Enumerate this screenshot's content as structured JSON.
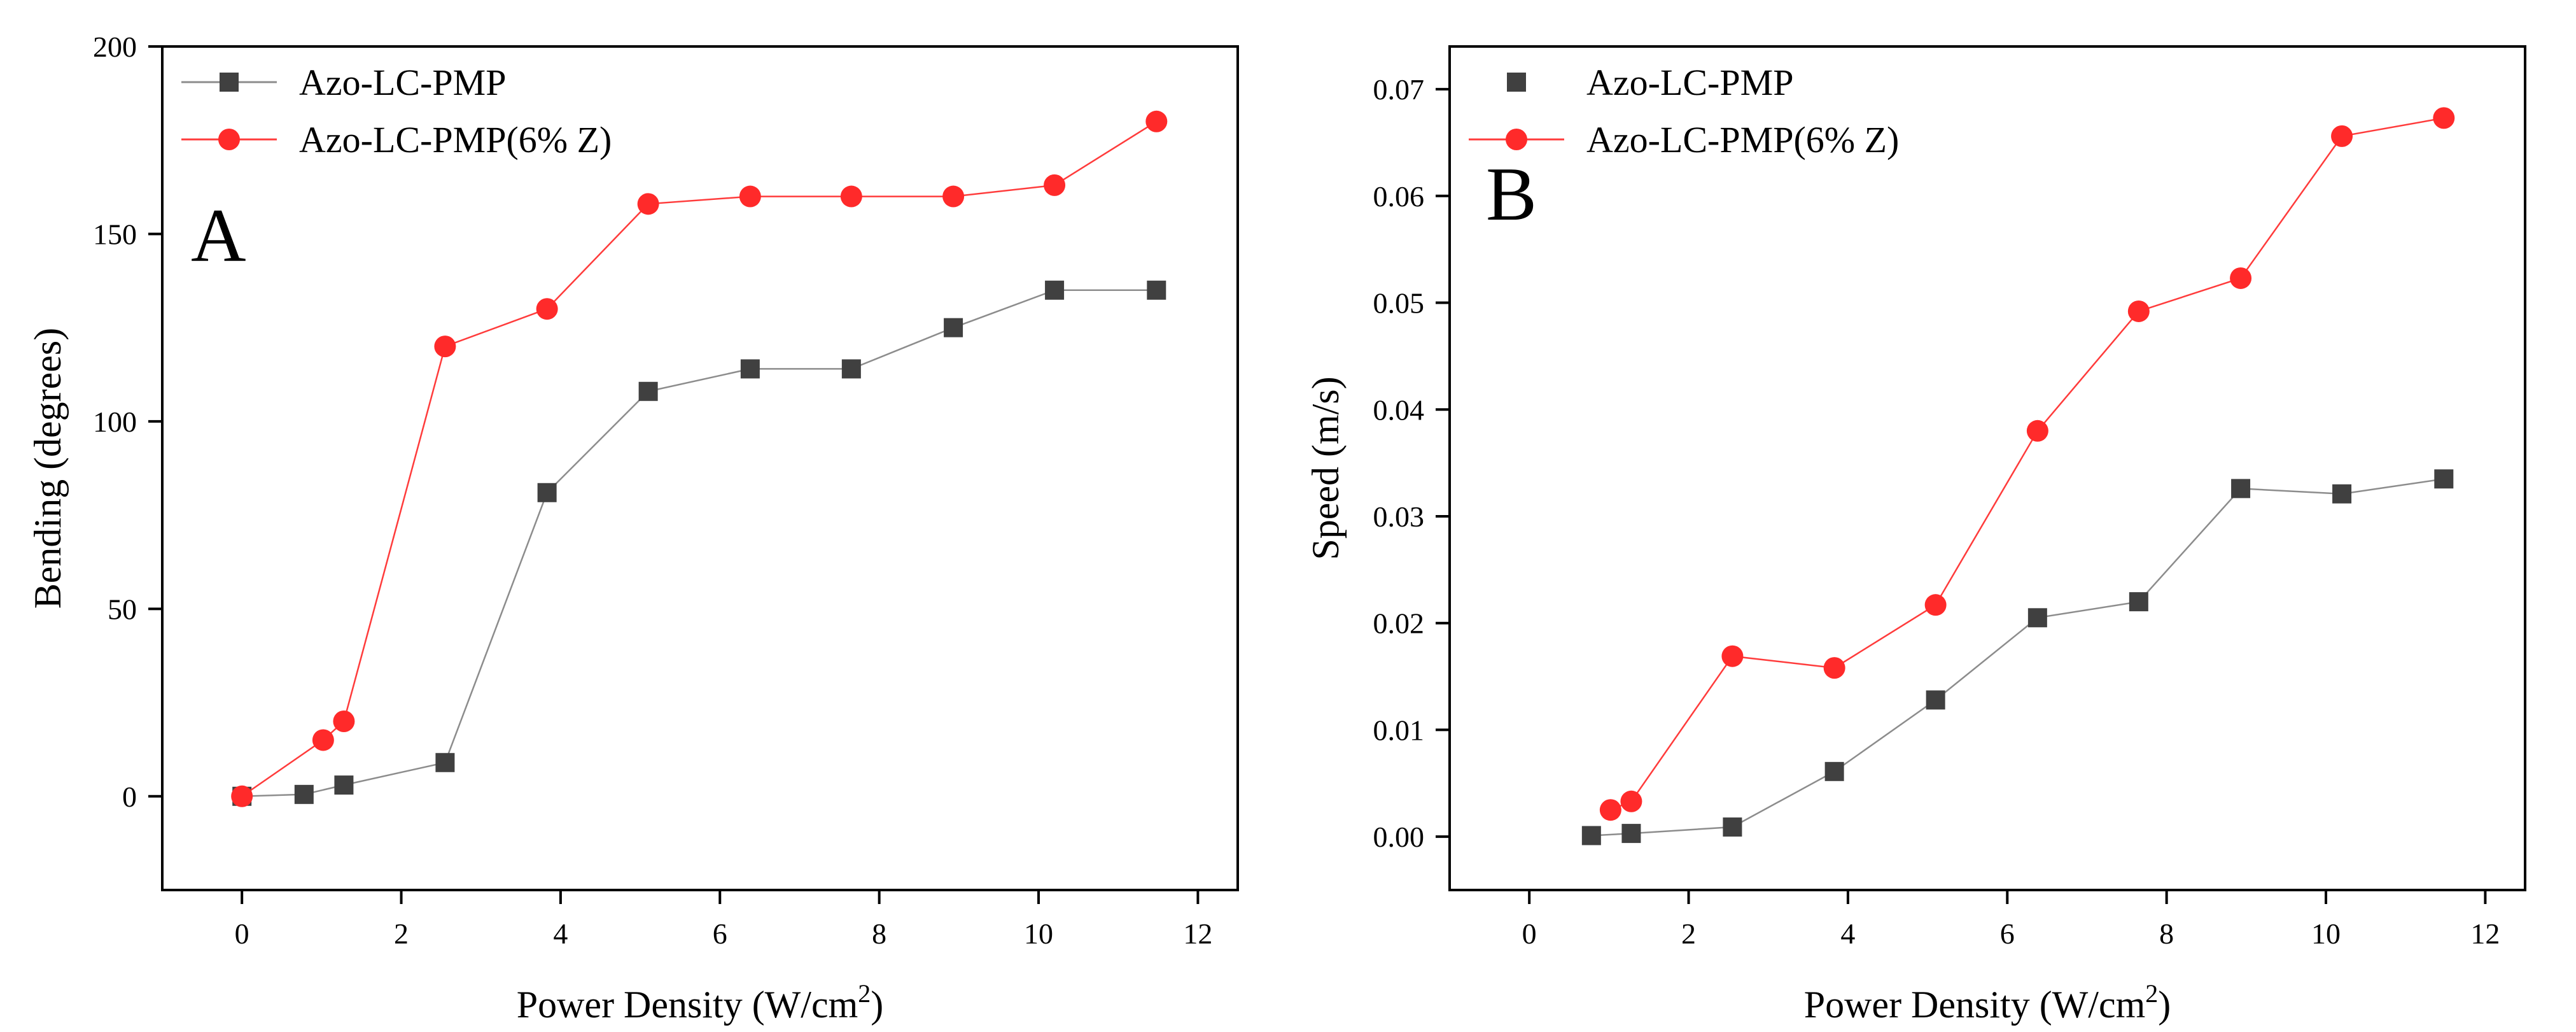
{
  "chart_data": [
    {
      "type": "line",
      "panel_label": "A",
      "xlabel": "Power Density (W/cm",
      "xlabel_sup": "2",
      "xlabel_close": ")",
      "ylabel": "Bending (degrees)",
      "xlim": [
        -1,
        12.5
      ],
      "ylim": [
        -25,
        200
      ],
      "xticks": [
        0,
        2,
        4,
        6,
        8,
        10,
        12
      ],
      "yticks": [
        0,
        50,
        100,
        150,
        200
      ],
      "grid": false,
      "legend_position": "top-left",
      "series": [
        {
          "name": "Azo-LC-PMP",
          "marker": "square",
          "color": "#404040",
          "line_color": "#8c8c8c",
          "x": [
            0,
            0.78,
            1.28,
            2.55,
            3.83,
            5.1,
            6.38,
            7.65,
            8.93,
            10.2,
            11.48
          ],
          "y": [
            0,
            0.5,
            3,
            9,
            81,
            108,
            114,
            114,
            125,
            135,
            135
          ]
        },
        {
          "name": "Azo-LC-PMP(6% Z)",
          "marker": "circle",
          "color": "#ff2a2a",
          "line_color": "#ff3b3b",
          "x": [
            0,
            1.02,
            1.28,
            2.55,
            3.83,
            5.1,
            6.38,
            7.65,
            8.93,
            10.2,
            11.48
          ],
          "y": [
            0,
            15,
            20,
            120,
            130,
            158,
            160,
            160,
            160,
            163,
            180
          ]
        }
      ]
    },
    {
      "type": "line",
      "panel_label": "B",
      "xlabel": "Power Density (W/cm",
      "xlabel_sup": "2",
      "xlabel_close": ")",
      "ylabel": "Speed (m/s)",
      "xlim": [
        -1,
        12.5
      ],
      "ylim": [
        -0.005,
        0.074
      ],
      "xticks": [
        0,
        2,
        4,
        6,
        8,
        10,
        12
      ],
      "yticks": [
        0,
        0.01,
        0.02,
        0.03,
        0.04,
        0.05,
        0.06,
        0.07
      ],
      "ytick_labels": [
        "0.00",
        "0.01",
        "0.02",
        "0.03",
        "0.04",
        "0.05",
        "0.06",
        "0.07"
      ],
      "grid": false,
      "legend_position": "top-left",
      "series": [
        {
          "name": "Azo-LC-PMP",
          "marker": "square",
          "color": "#404040",
          "line_color": "#8c8c8c",
          "x": [
            0.78,
            1.28,
            2.55,
            3.83,
            5.1,
            6.38,
            7.65,
            8.93,
            10.2,
            11.48
          ],
          "y": [
            0.0001,
            0.0003,
            0.0009,
            0.0061,
            0.0128,
            0.0205,
            0.022,
            0.0326,
            0.0321,
            0.0335
          ]
        },
        {
          "name": "Azo-LC-PMP(6% Z)",
          "marker": "circle",
          "color": "#ff2a2a",
          "line_color": "#ff3b3b",
          "x": [
            1.02,
            1.28,
            2.55,
            3.83,
            5.1,
            6.38,
            7.65,
            8.93,
            10.2,
            11.48
          ],
          "y": [
            0.0025,
            0.0033,
            0.0169,
            0.0158,
            0.0217,
            0.038,
            0.0492,
            0.0523,
            0.0656,
            0.0673
          ]
        }
      ]
    }
  ]
}
